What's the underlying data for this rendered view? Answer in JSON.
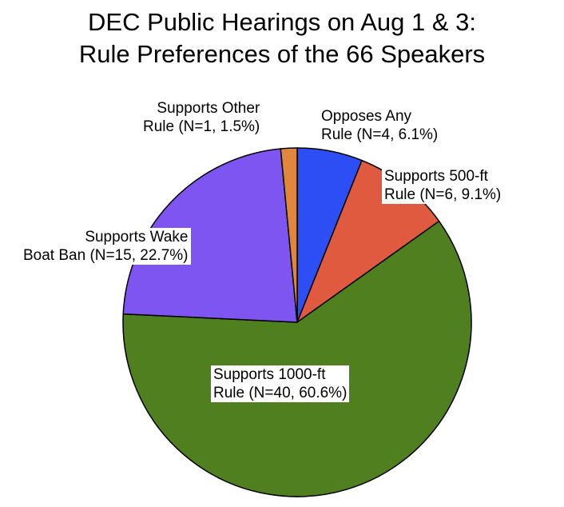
{
  "chart_data": {
    "type": "pie",
    "title": "DEC Public Hearings on Aug 1 & 3:",
    "subtitle": "Rule Preferences of the 66 Speakers",
    "total": 66,
    "slices": [
      {
        "line1": "Opposes Any",
        "line2": "Rule (N=4, 6.1%)",
        "value": 4,
        "percent": 6.1,
        "color": "#2d4ef5"
      },
      {
        "line1": "Supports 500-ft",
        "line2": "Rule (N=6, 9.1%)",
        "value": 6,
        "percent": 9.1,
        "color": "#e05a3f"
      },
      {
        "line1": "Supports 1000-ft",
        "line2": "Rule (N=40, 60.6%)",
        "value": 40,
        "percent": 60.6,
        "color": "#4f7f1f"
      },
      {
        "line1": "Supports Wake",
        "line2": "Boat Ban (N=15, 22.7%)",
        "value": 15,
        "percent": 22.7,
        "color": "#7f55f2"
      },
      {
        "line1": "Supports Other",
        "line2": "Rule (N=1, 1.5%)",
        "value": 1,
        "percent": 1.5,
        "color": "#e0863d"
      }
    ],
    "start_position": "12 o'clock",
    "direction": "clockwise",
    "legend": "none (labels on or beside slices)"
  }
}
